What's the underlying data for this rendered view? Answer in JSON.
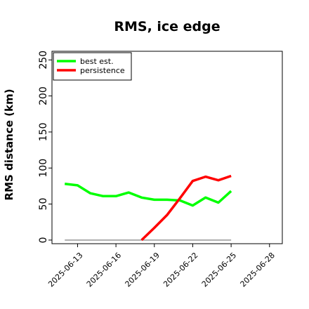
{
  "chart_data": {
    "type": "line",
    "title": "RMS, ice edge",
    "xlabel": "",
    "ylabel": "RMS distance (km)",
    "x": [
      "2025-06-12",
      "2025-06-13",
      "2025-06-14",
      "2025-06-15",
      "2025-06-16",
      "2025-06-17",
      "2025-06-18",
      "2025-06-19",
      "2025-06-20",
      "2025-06-21",
      "2025-06-22",
      "2025-06-23",
      "2025-06-24",
      "2025-06-25"
    ],
    "xticks": [
      "2025-06-13",
      "2025-06-16",
      "2025-06-19",
      "2025-06-22",
      "2025-06-25",
      "2025-06-28"
    ],
    "xlim": [
      "2025-06-11",
      "2025-06-29"
    ],
    "ylim": [
      -5,
      262
    ],
    "yticks": [
      0,
      50,
      100,
      150,
      200,
      250
    ],
    "grid": false,
    "legend_position": "top-left",
    "series": [
      {
        "name": "best est.",
        "color": "#00ff00",
        "values": [
          78,
          76,
          65,
          61,
          61,
          66,
          59,
          56,
          56,
          55,
          48,
          59,
          52,
          68
        ]
      },
      {
        "name": "persistence",
        "color": "#ff0000",
        "values": [
          null,
          null,
          null,
          null,
          null,
          null,
          0,
          17,
          35,
          58,
          82,
          88,
          83,
          89
        ]
      }
    ],
    "baseline": {
      "value": 0,
      "color": "#808080",
      "x_range": [
        "2025-06-12",
        "2025-06-25"
      ]
    }
  }
}
